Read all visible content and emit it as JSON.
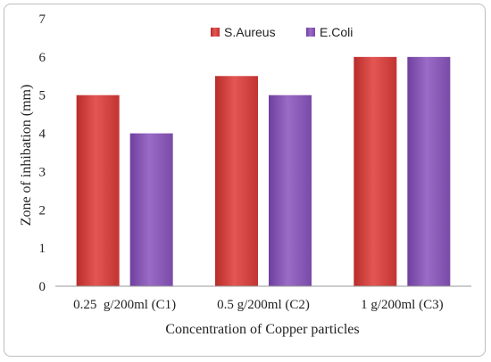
{
  "chart_data": {
    "type": "bar",
    "title": "",
    "xlabel": "Concentration  of Copper particles",
    "ylabel": "Zone of inhibation  (mm)",
    "categories": [
      "0.25  g/200ml (C1)",
      "0.5 g/200ml (C2)",
      "1 g/200ml (C3)"
    ],
    "series": [
      {
        "name": "S.Aureus",
        "values": [
          5,
          5.5,
          6
        ],
        "color": "#d8403e"
      },
      {
        "name": "E.Coli",
        "values": [
          4,
          5,
          6
        ],
        "color": "#8b5bb8"
      }
    ],
    "ylim": [
      0,
      7
    ],
    "yticks": [
      "0",
      "1",
      "2",
      "3",
      "4",
      "5",
      "6",
      "7"
    ],
    "grid": false,
    "legend": "top-center"
  }
}
